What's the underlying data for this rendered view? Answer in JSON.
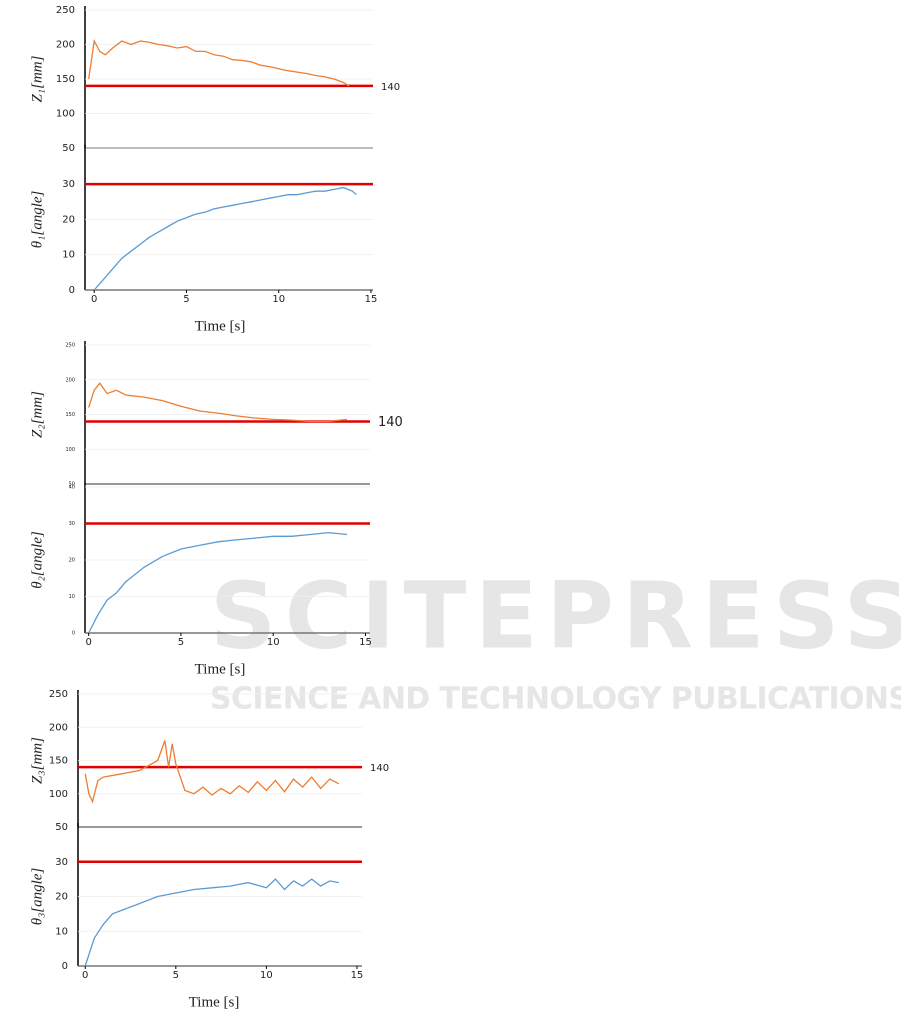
{
  "watermark": {
    "title": "SCITEPRESS",
    "subtitle": "SCIENCE AND TECHNOLOGY PUBLICATIONS"
  },
  "chart_data": [
    {
      "type": "line",
      "ylabel": "Z₁[mm]",
      "ylim": [
        50,
        250
      ],
      "yticks": [
        50,
        100,
        150,
        200,
        250
      ],
      "xlim": [
        -0.5,
        15
      ],
      "x": [
        -0.3,
        0,
        0.3,
        0.6,
        1,
        1.5,
        2,
        2.5,
        3,
        3.5,
        4,
        4.5,
        5,
        5.5,
        6,
        6.5,
        7,
        7.5,
        8,
        8.5,
        9,
        9.5,
        10,
        10.5,
        11,
        11.5,
        12,
        12.5,
        13,
        13.5,
        13.8
      ],
      "values": [
        150,
        205,
        190,
        185,
        195,
        205,
        200,
        205,
        203,
        200,
        198,
        195,
        197,
        190,
        190,
        185,
        183,
        178,
        177,
        175,
        170,
        168,
        165,
        162,
        160,
        158,
        155,
        153,
        150,
        145,
        140
      ],
      "color": "#ed7d31",
      "ref_line": 140,
      "ref_line_color": "#e00000",
      "ref_line_labeled": true
    },
    {
      "type": "line",
      "ylabel": "θ₁[angle]",
      "ylim": [
        0,
        40
      ],
      "yticks": [
        0,
        10,
        20,
        30
      ],
      "xlim": [
        -0.5,
        15
      ],
      "xticks": [
        0,
        5,
        10,
        15
      ],
      "xlabel": "Time [s]",
      "x": [
        0,
        0.5,
        1,
        1.5,
        2,
        2.5,
        3,
        3.5,
        4,
        4.5,
        5,
        5.5,
        6,
        6.5,
        7,
        7.5,
        8,
        8.5,
        9,
        9.5,
        10,
        10.5,
        11,
        11.5,
        12,
        12.5,
        13,
        13.5,
        14,
        14.2
      ],
      "values": [
        0,
        3,
        6,
        9,
        11,
        13,
        15,
        16.5,
        18,
        19.5,
        20.5,
        21.5,
        22,
        23,
        23.5,
        24,
        24.5,
        25,
        25.5,
        26,
        26.5,
        27,
        27,
        27.5,
        28,
        28,
        28.5,
        29,
        28,
        27
      ],
      "color": "#5b9bd5",
      "ref_line": 30,
      "ref_line_color": "#e00000",
      "ref_line_labeled": false
    },
    {
      "type": "line",
      "ylabel": "Z₂[mm]",
      "ylim": [
        50,
        250
      ],
      "yticks": [
        50,
        100,
        150,
        200,
        250
      ],
      "xlim": [
        -0.2,
        15.3
      ],
      "x": [
        0,
        0.3,
        0.6,
        1,
        1.5,
        2,
        3,
        4,
        5,
        6,
        7,
        8,
        9,
        10,
        11,
        12,
        13,
        14
      ],
      "values": [
        160,
        185,
        195,
        180,
        185,
        178,
        175,
        170,
        162,
        155,
        152,
        148,
        145,
        143,
        142,
        140,
        140,
        143
      ],
      "color": "#ed7d31",
      "ref_line": 140,
      "ref_line_color": "#e00000",
      "ref_line_labeled": true
    },
    {
      "type": "line",
      "ylabel": "θ₂[angle]",
      "ylim": [
        0,
        40
      ],
      "yticks": [
        0,
        10,
        20,
        30,
        40
      ],
      "xlim": [
        -0.2,
        15.3
      ],
      "xticks": [
        0,
        5,
        10,
        15
      ],
      "xlabel": "Time [s]",
      "x": [
        0,
        0.5,
        1,
        1.5,
        2,
        3,
        4,
        5,
        6,
        7,
        8,
        9,
        10,
        11,
        12,
        13,
        14
      ],
      "values": [
        0,
        5,
        9,
        11,
        14,
        18,
        21,
        23,
        24,
        25,
        25.5,
        26,
        26.5,
        26.5,
        27,
        27.5,
        27
      ],
      "color": "#5b9bd5",
      "ref_line": 30,
      "ref_line_color": "#e00000",
      "ref_line_labeled": false
    },
    {
      "type": "line",
      "ylabel": "Z₃[mm]",
      "ylim": [
        50,
        250
      ],
      "yticks": [
        50,
        100,
        150,
        200,
        250
      ],
      "xlim": [
        -0.4,
        15.5
      ],
      "x": [
        0,
        0.2,
        0.4,
        0.7,
        1,
        2,
        3,
        4,
        4.4,
        4.6,
        4.8,
        5,
        5.5,
        6,
        6.5,
        7,
        7.5,
        8,
        8.5,
        9,
        9.5,
        10,
        10.5,
        11,
        11.5,
        12,
        12.5,
        13,
        13.5,
        14
      ],
      "values": [
        130,
        100,
        88,
        120,
        125,
        130,
        135,
        150,
        180,
        140,
        175,
        145,
        105,
        100,
        110,
        98,
        108,
        100,
        112,
        102,
        118,
        105,
        120,
        103,
        122,
        110,
        125,
        108,
        122,
        115
      ],
      "color": "#ed7d31",
      "ref_line": 140,
      "ref_line_color": "#e00000",
      "ref_line_labeled": true
    },
    {
      "type": "line",
      "ylabel": "θ₃[angle]",
      "ylim": [
        0,
        40
      ],
      "yticks": [
        0,
        10,
        20,
        30
      ],
      "xlim": [
        -0.4,
        15.5
      ],
      "xticks": [
        0,
        5,
        10,
        15
      ],
      "xlabel": "Time [s]",
      "x": [
        0,
        0.5,
        1,
        1.5,
        2,
        3,
        4,
        5,
        6,
        7,
        8,
        9,
        10,
        10.5,
        11,
        11.5,
        12,
        12.5,
        13,
        13.5,
        14
      ],
      "values": [
        0,
        8,
        12,
        15,
        16,
        18,
        20,
        21,
        22,
        22.5,
        23,
        24,
        22.5,
        25,
        22,
        24.5,
        23,
        25,
        23,
        24.5,
        24
      ],
      "color": "#5b9bd5",
      "ref_line": 30,
      "ref_line_color": "#e00000",
      "ref_line_labeled": false
    }
  ]
}
